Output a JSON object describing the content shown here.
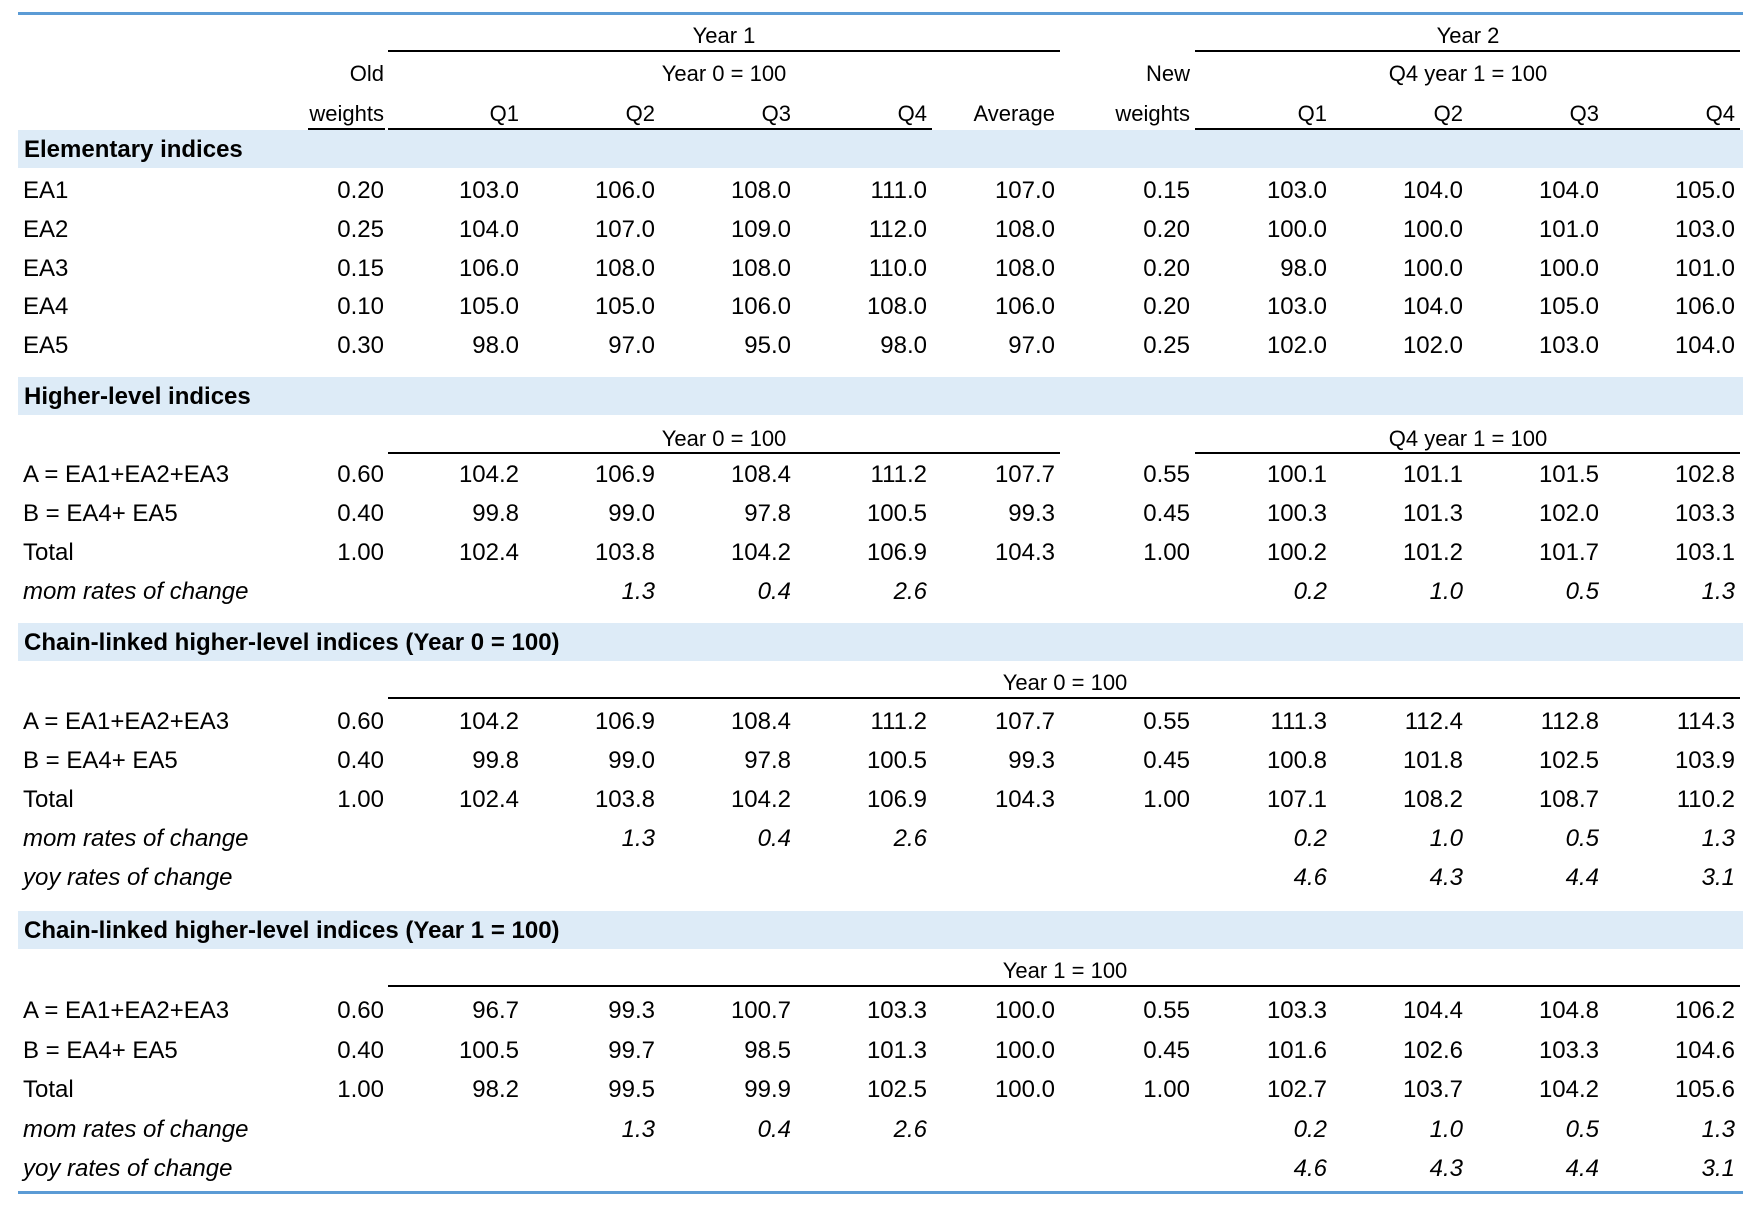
{
  "header": {
    "year1": "Year 1",
    "year2": "Year 2",
    "old": "Old",
    "weights_old": "weights",
    "new": "New",
    "weights_new": "weights",
    "base_year1": "Year 0 = 100",
    "base_year2": "Q4 year 1 = 100",
    "cols_year1": [
      "Q1",
      "Q2",
      "Q3",
      "Q4",
      "Average"
    ],
    "cols_year2": [
      "Q1",
      "Q2",
      "Q3",
      "Q4"
    ]
  },
  "sections": [
    {
      "title": "Elementary indices",
      "rows": [
        {
          "label": "EA1",
          "cells": [
            "0.20",
            "103.0",
            "106.0",
            "108.0",
            "111.0",
            "107.0",
            "0.15",
            "103.0",
            "104.0",
            "104.0",
            "105.0"
          ]
        },
        {
          "label": "EA2",
          "cells": [
            "0.25",
            "104.0",
            "107.0",
            "109.0",
            "112.0",
            "108.0",
            "0.20",
            "100.0",
            "100.0",
            "101.0",
            "103.0"
          ]
        },
        {
          "label": "EA3",
          "cells": [
            "0.15",
            "106.0",
            "108.0",
            "108.0",
            "110.0",
            "108.0",
            "0.20",
            "98.0",
            "100.0",
            "100.0",
            "101.0"
          ]
        },
        {
          "label": "EA4",
          "cells": [
            "0.10",
            "105.0",
            "105.0",
            "106.0",
            "108.0",
            "106.0",
            "0.20",
            "103.0",
            "104.0",
            "105.0",
            "106.0"
          ]
        },
        {
          "label": "EA5",
          "cells": [
            "0.30",
            "98.0",
            "97.0",
            "95.0",
            "98.0",
            "97.0",
            "0.25",
            "102.0",
            "102.0",
            "103.0",
            "104.0"
          ]
        }
      ]
    },
    {
      "title": "Higher-level indices",
      "sub_left": "Year 0 = 100",
      "sub_right": "Q4 year 1 = 100",
      "rows": [
        {
          "label": "A = EA1+EA2+EA3",
          "cells": [
            "0.60",
            "104.2",
            "106.9",
            "108.4",
            "111.2",
            "107.7",
            "0.55",
            "100.1",
            "101.1",
            "101.5",
            "102.8"
          ]
        },
        {
          "label": "B = EA4+ EA5",
          "cells": [
            "0.40",
            "99.8",
            "99.0",
            "97.8",
            "100.5",
            "99.3",
            "0.45",
            "100.3",
            "101.3",
            "102.0",
            "103.3"
          ]
        },
        {
          "label": "Total",
          "cells": [
            "1.00",
            "102.4",
            "103.8",
            "104.2",
            "106.9",
            "104.3",
            "1.00",
            "100.2",
            "101.2",
            "101.7",
            "103.1"
          ]
        },
        {
          "label": "mom rates of change",
          "italic": true,
          "cells": [
            "",
            "",
            "1.3",
            "0.4",
            "2.6",
            "",
            "",
            "0.2",
            "1.0",
            "0.5",
            "1.3"
          ]
        }
      ]
    },
    {
      "title": "Chain-linked higher-level indices (Year 0 = 100)",
      "sub_center": "Year 0 = 100",
      "rows": [
        {
          "label": "A = EA1+EA2+EA3",
          "cells": [
            "0.60",
            "104.2",
            "106.9",
            "108.4",
            "111.2",
            "107.7",
            "0.55",
            "111.3",
            "112.4",
            "112.8",
            "114.3"
          ]
        },
        {
          "label": "B = EA4+ EA5",
          "cells": [
            "0.40",
            "99.8",
            "99.0",
            "97.8",
            "100.5",
            "99.3",
            "0.45",
            "100.8",
            "101.8",
            "102.5",
            "103.9"
          ]
        },
        {
          "label": "Total",
          "cells": [
            "1.00",
            "102.4",
            "103.8",
            "104.2",
            "106.9",
            "104.3",
            "1.00",
            "107.1",
            "108.2",
            "108.7",
            "110.2"
          ]
        },
        {
          "label": "mom rates of change",
          "italic": true,
          "cells": [
            "",
            "",
            "1.3",
            "0.4",
            "2.6",
            "",
            "",
            "0.2",
            "1.0",
            "0.5",
            "1.3"
          ]
        },
        {
          "label": "yoy rates of change",
          "italic": true,
          "cells": [
            "",
            "",
            "",
            "",
            "",
            "",
            "",
            "4.6",
            "4.3",
            "4.4",
            "3.1"
          ]
        }
      ]
    },
    {
      "title": "Chain-linked higher-level indices (Year 1 = 100)",
      "sub_center": "Year 1 = 100",
      "rows": [
        {
          "label": "A = EA1+EA2+EA3",
          "cells": [
            "0.60",
            "96.7",
            "99.3",
            "100.7",
            "103.3",
            "100.0",
            "0.55",
            "103.3",
            "104.4",
            "104.8",
            "106.2"
          ]
        },
        {
          "label": "B = EA4+ EA5",
          "cells": [
            "0.40",
            "100.5",
            "99.7",
            "98.5",
            "101.3",
            "100.0",
            "0.45",
            "101.6",
            "102.6",
            "103.3",
            "104.6"
          ]
        },
        {
          "label": "Total",
          "cells": [
            "1.00",
            "98.2",
            "99.5",
            "99.9",
            "102.5",
            "100.0",
            "1.00",
            "102.7",
            "103.7",
            "104.2",
            "105.6"
          ]
        },
        {
          "label": "mom rates of change",
          "italic": true,
          "cells": [
            "",
            "",
            "1.3",
            "0.4",
            "2.6",
            "",
            "",
            "0.2",
            "1.0",
            "0.5",
            "1.3"
          ]
        },
        {
          "label": "yoy rates of change",
          "italic": true,
          "cells": [
            "",
            "",
            "",
            "",
            "",
            "",
            "",
            "4.6",
            "4.3",
            "4.4",
            "3.1"
          ]
        }
      ]
    }
  ]
}
